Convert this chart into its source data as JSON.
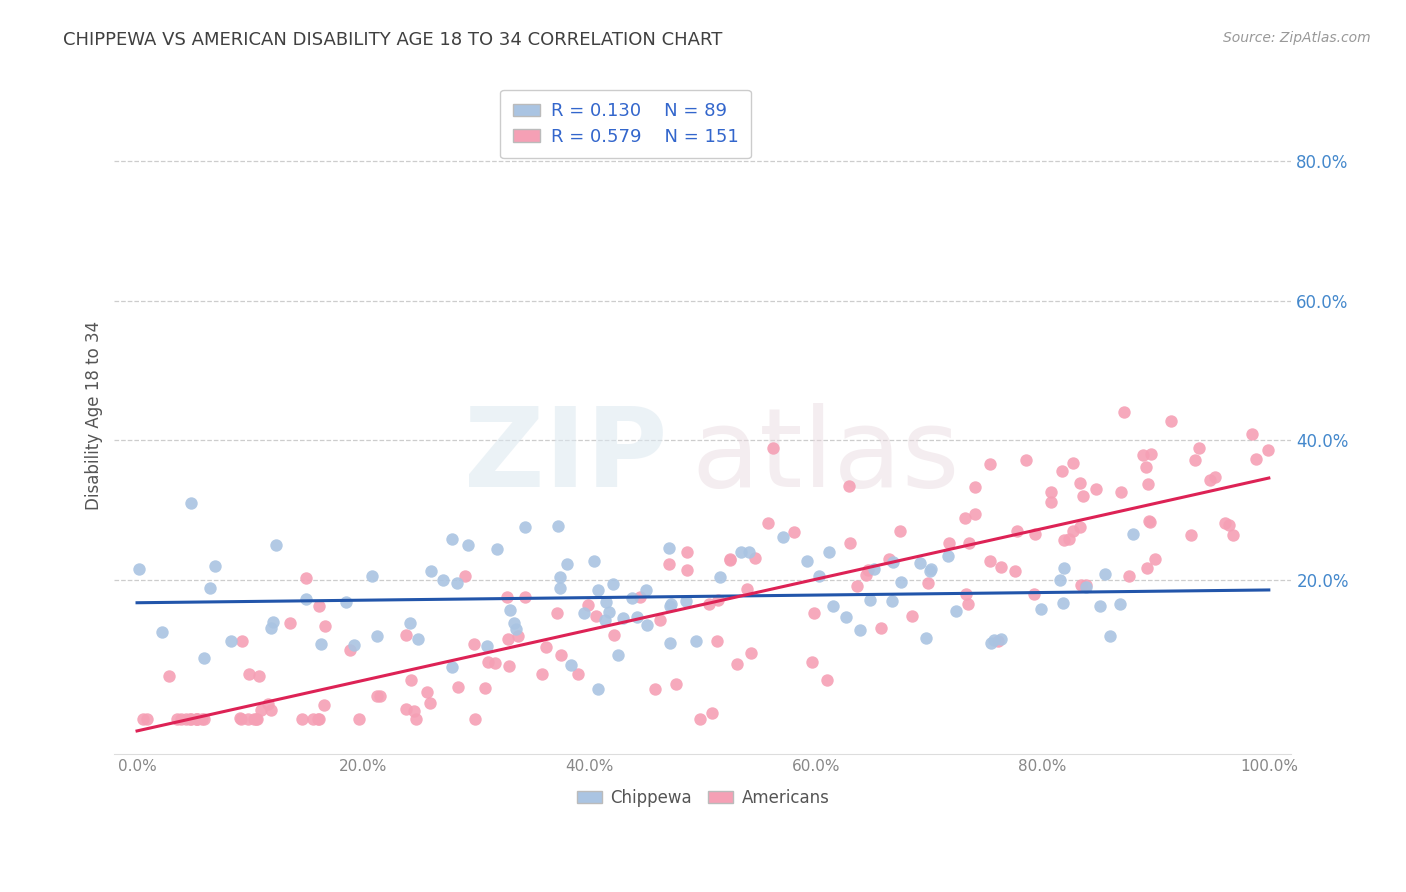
{
  "title": "CHIPPEWA VS AMERICAN DISABILITY AGE 18 TO 34 CORRELATION CHART",
  "source": "Source: ZipAtlas.com",
  "ylabel": "Disability Age 18 to 34",
  "xlim": [
    -0.02,
    1.02
  ],
  "ylim": [
    -0.05,
    0.92
  ],
  "chippewa_R": 0.13,
  "chippewa_N": 89,
  "american_R": 0.579,
  "american_N": 151,
  "chippewa_color": "#aac4e2",
  "american_color": "#f5a0b5",
  "chippewa_line_color": "#2255aa",
  "american_line_color": "#dd2255",
  "background_color": "#ffffff",
  "grid_color": "#c8c8c8",
  "title_color": "#404040",
  "legend_label_chippewa": "Chippewa",
  "legend_label_american": "Americans",
  "ytick_positions": [
    0.2,
    0.4,
    0.6,
    0.8
  ],
  "xtick_positions": [
    0.0,
    0.2,
    0.4,
    0.6,
    0.8,
    1.0
  ]
}
